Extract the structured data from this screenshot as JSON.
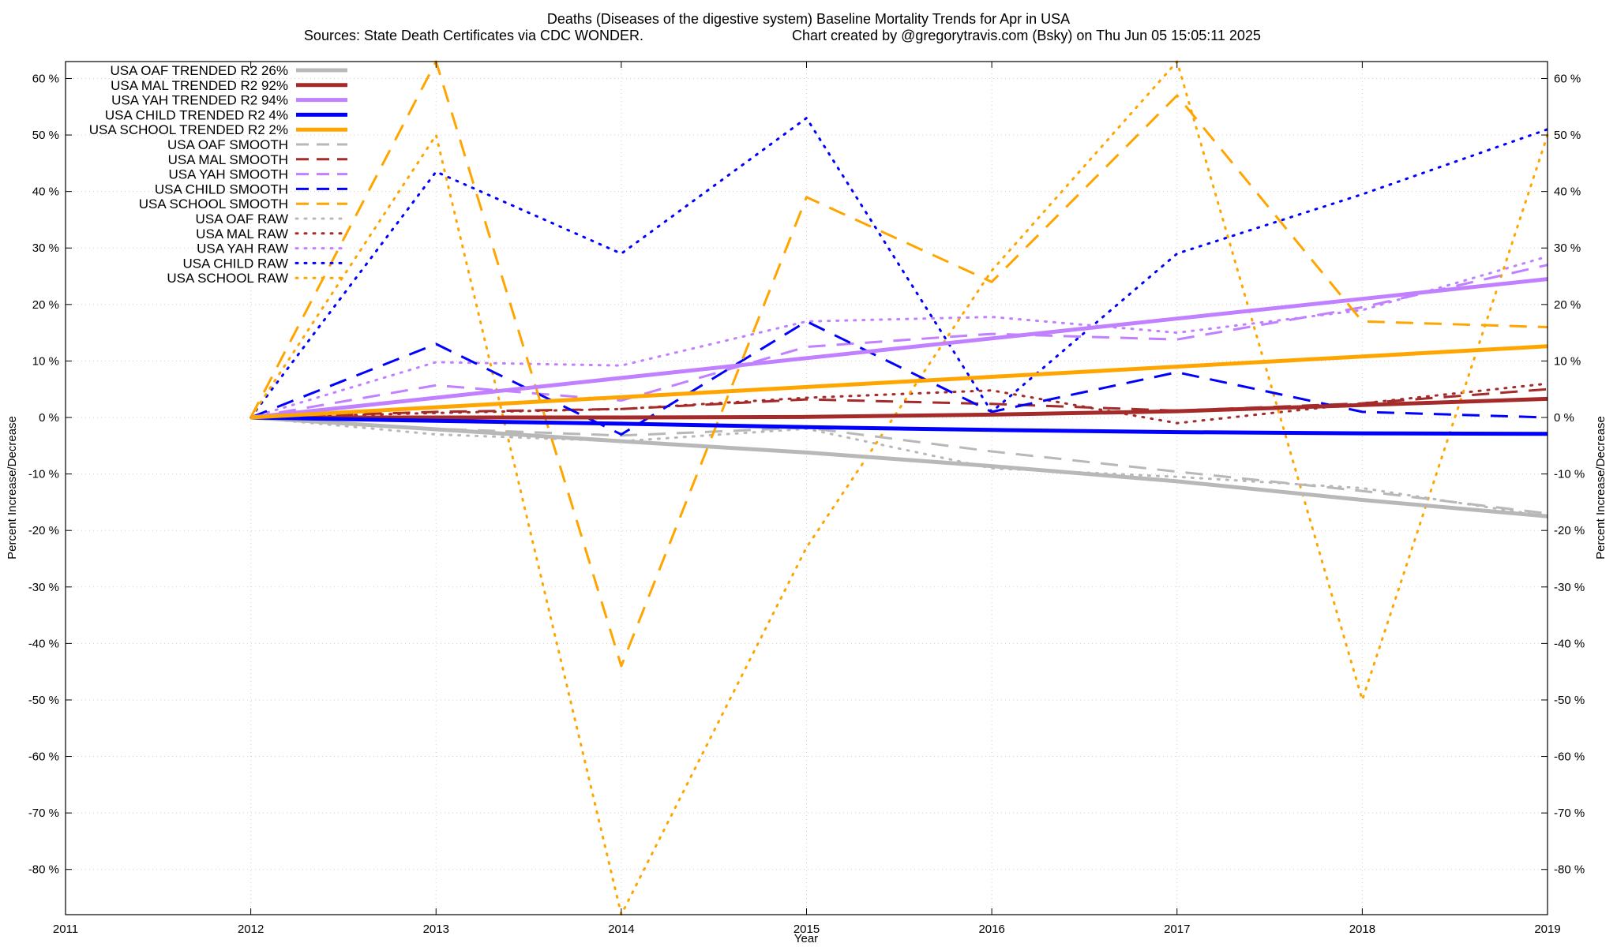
{
  "chart_data": {
    "type": "line",
    "title": "Deaths (Diseases of the digestive system)  Baseline Mortality Trends for Apr in USA",
    "subtitle_left": "Sources: State Death Certificates via CDC WONDER.",
    "subtitle_right": "Chart created by @gregorytravis.com (Bsky) on Thu Jun 05 15:05:11 2025",
    "xlabel": "Year",
    "ylabel": "Percent Increase/Decrease",
    "y2label": "Percent Increase/Decrease",
    "xlim": [
      2011,
      2019
    ],
    "ylim": [
      -88,
      63
    ],
    "x_ticks": [
      "2011",
      "2012",
      "2013",
      "2014",
      "2015",
      "2016",
      "2017",
      "2018",
      "2019"
    ],
    "y_ticks": [
      60,
      50,
      40,
      30,
      20,
      10,
      0,
      -10,
      -20,
      -30,
      -40,
      -50,
      -60,
      -70,
      -80
    ],
    "y_tick_labels": [
      "60 %",
      "50 %",
      "40 %",
      "30 %",
      "20 %",
      "10 %",
      "0 %",
      "-10 %",
      "-20 %",
      "-30 %",
      "-40 %",
      "-50 %",
      "-60 %",
      "-70 %",
      "-80 %"
    ],
    "grid": true,
    "legend_position": "top-left",
    "x": [
      2012,
      2013,
      2014,
      2015,
      2016,
      2017,
      2018,
      2019
    ],
    "series": [
      {
        "name": "USA OAF TRENDED R2  26%",
        "style": "solid",
        "color": "#b8b8b8",
        "values": [
          0,
          -2.1,
          -4.2,
          -6.2,
          -8.6,
          -11.3,
          -14.6,
          -17.5
        ]
      },
      {
        "name": "USA MAL TRENDED R2  92%",
        "style": "solid",
        "color": "#a52a2a",
        "values": [
          0,
          0,
          0,
          0.1,
          0.5,
          1.1,
          2.2,
          3.3
        ]
      },
      {
        "name": "USA YAH TRENDED R2  94%",
        "style": "solid",
        "color": "#c080ff",
        "values": [
          0,
          3.5,
          7.0,
          10.5,
          14.0,
          17.5,
          21.0,
          24.5
        ]
      },
      {
        "name": "USA CHILD TRENDED R2   4%",
        "style": "solid",
        "color": "#0000ff",
        "values": [
          0,
          -0.6,
          -1.1,
          -1.7,
          -2.2,
          -2.6,
          -2.8,
          -2.9
        ]
      },
      {
        "name": "USA SCHOOL TRENDED R2   2%",
        "style": "solid",
        "color": "#ffa500",
        "values": [
          0,
          1.8,
          3.6,
          5.4,
          7.2,
          9.0,
          10.8,
          12.6
        ]
      },
      {
        "name": "USA OAF SMOOTH",
        "style": "dash",
        "color": "#b8b8b8",
        "values": [
          0,
          -2.0,
          -3.2,
          -1.8,
          -6.0,
          -9.6,
          -13.0,
          -17.0
        ]
      },
      {
        "name": "USA MAL SMOOTH",
        "style": "dash",
        "color": "#a52a2a",
        "values": [
          0,
          1.0,
          1.5,
          3.2,
          2.4,
          1.2,
          2.5,
          5.0
        ]
      },
      {
        "name": "USA YAH SMOOTH",
        "style": "dash",
        "color": "#c080ff",
        "values": [
          0,
          5.7,
          3.0,
          12.5,
          14.8,
          13.8,
          19.5,
          27.0
        ]
      },
      {
        "name": "USA CHILD SMOOTH",
        "style": "dash",
        "color": "#0000ff",
        "values": [
          0,
          13.0,
          -3.0,
          17.0,
          1.0,
          8.0,
          1.0,
          0
        ]
      },
      {
        "name": "USA SCHOOL SMOOTH",
        "style": "dash",
        "color": "#ffa500",
        "values": [
          0,
          63.0,
          -44.0,
          39.0,
          24.0,
          57.0,
          17.0,
          16.0
        ]
      },
      {
        "name": "USA OAF RAW",
        "style": "dot",
        "color": "#b8b8b8",
        "values": [
          0,
          -3.0,
          -4.2,
          -2.0,
          -9.0,
          -10.5,
          -12.5,
          -17.5
        ]
      },
      {
        "name": "USA MAL RAW",
        "style": "dot",
        "color": "#a52a2a",
        "values": [
          0,
          0.8,
          1.5,
          3.5,
          4.8,
          -1.0,
          2.5,
          6.0
        ]
      },
      {
        "name": "USA YAH RAW",
        "style": "dot",
        "color": "#c080ff",
        "values": [
          0,
          9.8,
          9.2,
          17.0,
          17.8,
          15.0,
          19.0,
          28.5
        ]
      },
      {
        "name": "USA CHILD RAW",
        "style": "dot",
        "color": "#0000ff",
        "values": [
          0,
          43.5,
          29.0,
          53.0,
          1.0,
          29.0,
          39.5,
          51.0
        ]
      },
      {
        "name": "USA SCHOOL RAW",
        "style": "dot",
        "color": "#ffa500",
        "values": [
          0,
          50.0,
          -88.0,
          -23.0,
          26.0,
          63.0,
          -50.0,
          50.0
        ]
      }
    ]
  }
}
